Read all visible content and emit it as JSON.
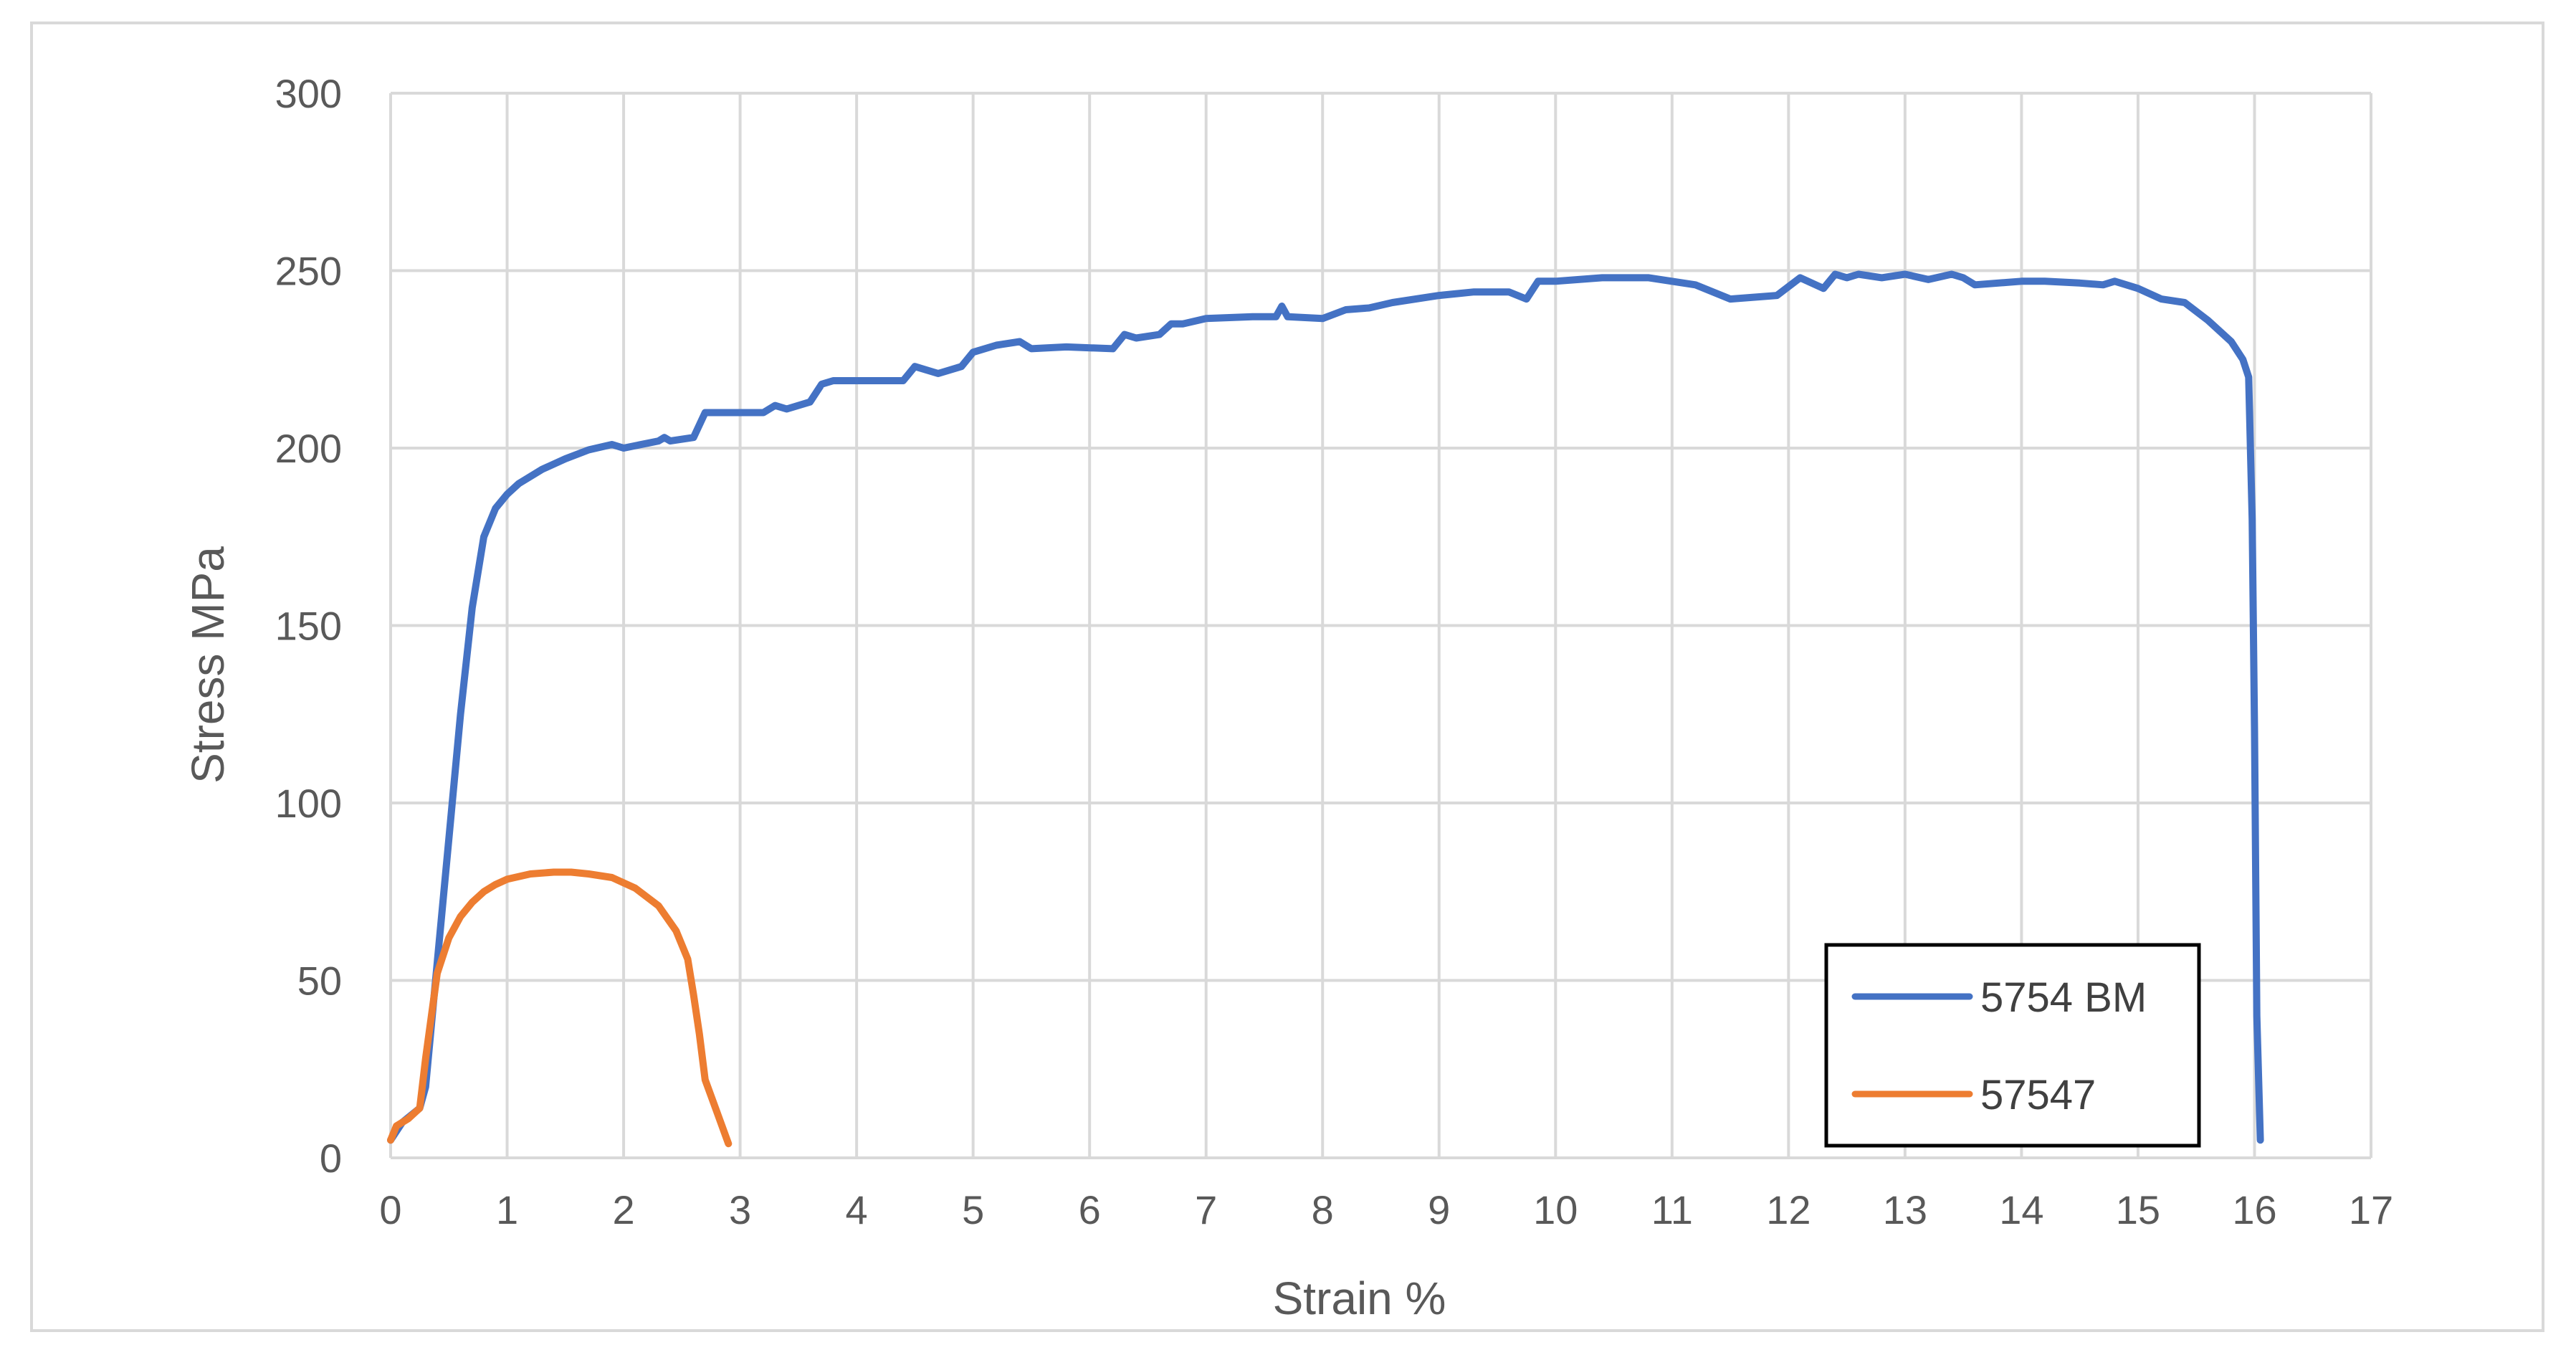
{
  "chart_data": {
    "type": "line",
    "title": "",
    "xlabel": "Strain %",
    "ylabel": "Stress MPa",
    "xlim": [
      0,
      17
    ],
    "ylim": [
      0,
      300
    ],
    "xticks": [
      0,
      1,
      2,
      3,
      4,
      5,
      6,
      7,
      8,
      9,
      10,
      11,
      12,
      13,
      14,
      15,
      16,
      17
    ],
    "yticks": [
      0,
      50,
      100,
      150,
      200,
      250,
      300
    ],
    "grid": true,
    "legend_position": "bottom-right",
    "series": [
      {
        "name": "5754 BM",
        "color": "#4472C4",
        "x": [
          0,
          0.1,
          0.25,
          0.3,
          0.4,
          0.5,
          0.6,
          0.7,
          0.8,
          0.9,
          1.0,
          1.1,
          1.3,
          1.5,
          1.7,
          1.9,
          2.0,
          2.3,
          2.35,
          2.4,
          2.6,
          2.7,
          2.8,
          3.0,
          3.2,
          3.3,
          3.4,
          3.6,
          3.7,
          3.8,
          4.0,
          4.4,
          4.5,
          4.7,
          4.9,
          5.0,
          5.2,
          5.4,
          5.5,
          5.8,
          6.2,
          6.3,
          6.4,
          6.6,
          6.7,
          6.8,
          7.0,
          7.4,
          7.6,
          7.65,
          7.7,
          8.0,
          8.2,
          8.4,
          8.6,
          9.0,
          9.3,
          9.6,
          9.75,
          9.85,
          10.0,
          10.4,
          10.8,
          11.2,
          11.5,
          11.7,
          11.9,
          12.1,
          12.3,
          12.4,
          12.5,
          12.6,
          12.8,
          13.0,
          13.2,
          13.4,
          13.5,
          13.6,
          14.0,
          14.2,
          14.5,
          14.7,
          14.8,
          14.9,
          15.0,
          15.2,
          15.4,
          15.6,
          15.8,
          15.9,
          15.95,
          15.98,
          16.0,
          16.02,
          16.05
        ],
        "y": [
          5,
          10,
          14,
          20,
          55,
          90,
          125,
          155,
          175,
          183,
          187,
          190,
          194,
          197,
          199.5,
          201,
          200,
          202,
          203,
          202,
          203,
          210,
          210,
          210,
          210,
          212,
          211,
          213,
          218,
          219,
          219,
          219,
          223,
          221,
          223,
          227,
          229,
          230,
          228,
          228.5,
          228,
          232,
          231,
          232,
          235,
          235,
          236.5,
          237,
          237,
          240,
          237,
          236.5,
          239,
          239.5,
          241,
          243,
          244,
          244,
          242,
          247,
          247,
          248,
          248,
          246,
          242,
          242.5,
          243,
          248,
          245,
          249,
          248,
          249,
          248,
          249,
          247.5,
          249,
          248,
          246,
          247,
          247,
          246.5,
          246,
          247,
          246,
          245,
          242,
          241,
          236,
          230,
          225,
          220,
          180,
          120,
          40,
          5
        ]
      },
      {
        "name": "57547",
        "color": "#ED7D31",
        "x": [
          0,
          0.05,
          0.15,
          0.25,
          0.3,
          0.35,
          0.4,
          0.5,
          0.6,
          0.7,
          0.8,
          0.9,
          1.0,
          1.2,
          1.4,
          1.55,
          1.7,
          1.9,
          2.1,
          2.3,
          2.45,
          2.55,
          2.6,
          2.65,
          2.7,
          2.8,
          2.9
        ],
        "y": [
          5,
          9,
          11,
          14,
          28,
          40,
          52,
          62,
          68,
          72,
          75,
          77,
          78.5,
          80,
          80.5,
          80.5,
          80,
          79,
          76,
          71,
          64,
          56,
          46,
          35,
          22,
          13,
          4
        ]
      }
    ]
  }
}
